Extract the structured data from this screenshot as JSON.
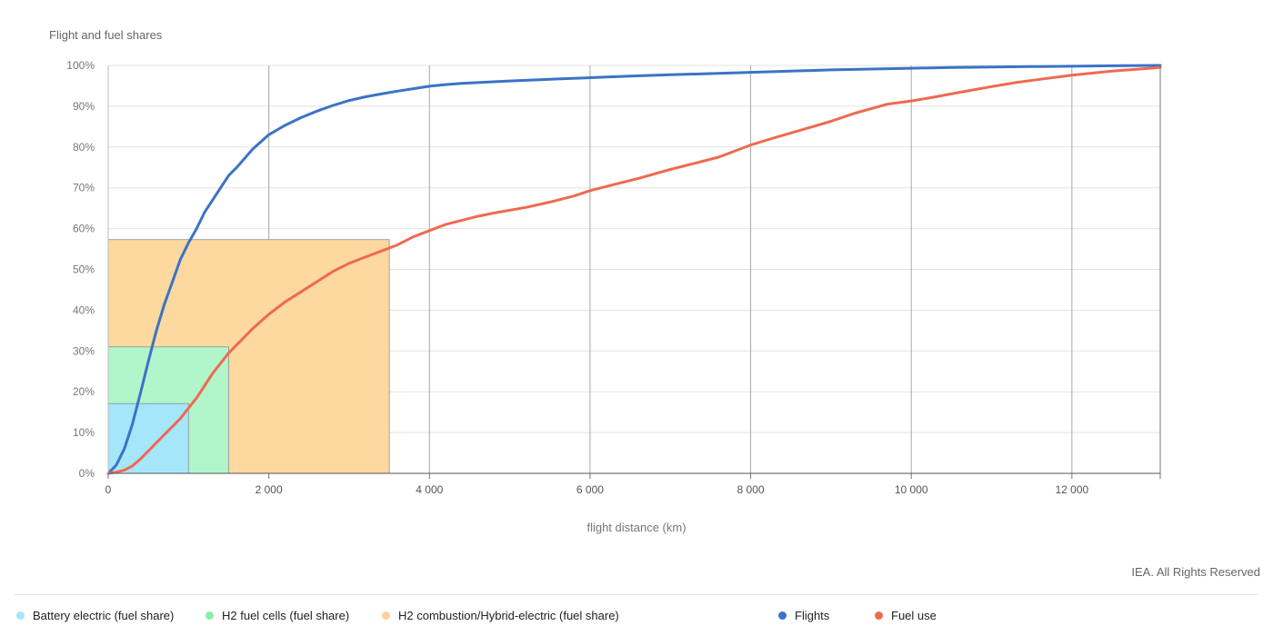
{
  "chart_data": {
    "type": "line",
    "ylabel": "Flight and fuel shares",
    "xlabel": "flight distance (km)",
    "xlim": [
      0,
      13100
    ],
    "ylim": [
      0,
      100
    ],
    "x_ticks": [
      {
        "value": 0,
        "label": "0"
      },
      {
        "value": 2000,
        "label": "2 000"
      },
      {
        "value": 4000,
        "label": "4 000"
      },
      {
        "value": 6000,
        "label": "6 000"
      },
      {
        "value": 8000,
        "label": "8 000"
      },
      {
        "value": 10000,
        "label": "10 000"
      },
      {
        "value": 12000,
        "label": "12 000"
      }
    ],
    "y_ticks": [
      {
        "value": 0,
        "label": "0%"
      },
      {
        "value": 10,
        "label": "10%"
      },
      {
        "value": 20,
        "label": "20%"
      },
      {
        "value": 30,
        "label": "30%"
      },
      {
        "value": 40,
        "label": "40%"
      },
      {
        "value": 50,
        "label": "50%"
      },
      {
        "value": 60,
        "label": "60%"
      },
      {
        "value": 70,
        "label": "70%"
      },
      {
        "value": 80,
        "label": "80%"
      },
      {
        "value": 90,
        "label": "90%"
      },
      {
        "value": 100,
        "label": "100%"
      }
    ],
    "areas": [
      {
        "name": "H2 combustion/Hybrid-electric (fuel share)",
        "x_max": 3500,
        "y_max": 57.3,
        "color": "#fdd89f"
      },
      {
        "name": "H2 fuel cells (fuel share)",
        "x_max": 1500,
        "y_max": 31,
        "color": "#b1f5cb"
      },
      {
        "name": "Battery electric (fuel share)",
        "x_max": 1000,
        "y_max": 17.1,
        "color": "#a6e6fb"
      }
    ],
    "series": [
      {
        "name": "Flights",
        "color": "#3b73c6",
        "x": [
          0,
          100,
          200,
          300,
          400,
          500,
          600,
          700,
          800,
          900,
          1000,
          1100,
          1200,
          1300,
          1400,
          1500,
          1600,
          1800,
          2000,
          2200,
          2400,
          2600,
          2800,
          3000,
          3200,
          3400,
          3600,
          3800,
          4000,
          4200,
          4400,
          4600,
          4800,
          5000,
          5500,
          6000,
          6500,
          7000,
          7500,
          8000,
          8500,
          9000,
          9500,
          10000,
          10500,
          11000,
          11500,
          12000,
          12500,
          13100
        ],
        "y": [
          0,
          2,
          6,
          12,
          19.5,
          27.5,
          35,
          41.5,
          47,
          52.5,
          56.5,
          60,
          64,
          67,
          70,
          73,
          75,
          79.5,
          83,
          85.3,
          87.2,
          88.8,
          90.2,
          91.4,
          92.3,
          93,
          93.7,
          94.3,
          94.9,
          95.3,
          95.6,
          95.8,
          96,
          96.2,
          96.6,
          97,
          97.4,
          97.7,
          98,
          98.3,
          98.6,
          98.9,
          99.1,
          99.3,
          99.5,
          99.6,
          99.7,
          99.8,
          99.9,
          100
        ]
      },
      {
        "name": "Fuel use",
        "color": "#ee6a50",
        "x": [
          0,
          100,
          200,
          300,
          400,
          500,
          600,
          700,
          800,
          900,
          1000,
          1100,
          1200,
          1300,
          1400,
          1500,
          1600,
          1800,
          2000,
          2200,
          2400,
          2600,
          2800,
          3000,
          3200,
          3400,
          3600,
          3800,
          4000,
          4200,
          4400,
          4600,
          4800,
          5000,
          5200,
          5500,
          5800,
          6000,
          6300,
          6600,
          7000,
          7300,
          7600,
          8000,
          8300,
          8600,
          9000,
          9300,
          9700,
          10000,
          10300,
          10600,
          11000,
          11300,
          11600,
          12000,
          12500,
          13100
        ],
        "y": [
          0,
          0.3,
          0.8,
          1.8,
          3.5,
          5.5,
          7.5,
          9.5,
          11.5,
          13.5,
          16,
          18.5,
          21.5,
          24.5,
          27,
          29.5,
          31.5,
          35.5,
          39,
          42,
          44.5,
          47,
          49.5,
          51.5,
          53,
          54.5,
          56,
          58,
          59.5,
          61,
          62,
          63,
          63.8,
          64.5,
          65.2,
          66.5,
          68,
          69.3,
          70.8,
          72.3,
          74.5,
          76,
          77.5,
          80.5,
          82.3,
          84,
          86.3,
          88.3,
          90.5,
          91.3,
          92.3,
          93.4,
          94.8,
          95.8,
          96.6,
          97.6,
          98.6,
          99.5
        ]
      }
    ],
    "legend_position": "bottom",
    "grid": {
      "x": true,
      "y": true
    },
    "credit": "IEA. All Rights Reserved"
  }
}
